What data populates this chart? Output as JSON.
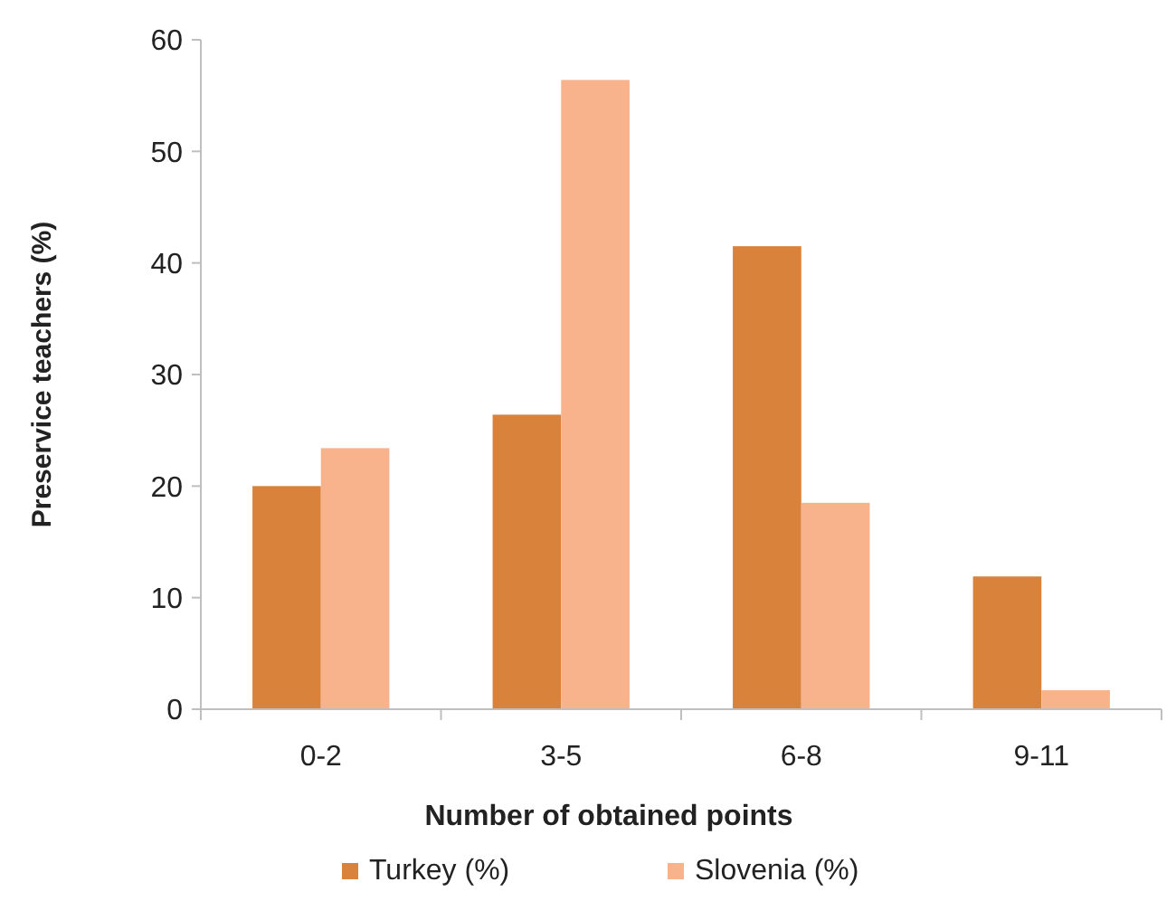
{
  "chart_data": {
    "type": "bar",
    "xlabel": "Number of obtained points",
    "ylabel": "Preservice teachers (%)",
    "categories": [
      "0-2",
      "3-5",
      "6-8",
      "9-11"
    ],
    "series": [
      {
        "name": "Turkey (%)",
        "color": "#d9823b",
        "values": [
          20.0,
          26.4,
          41.5,
          11.9
        ]
      },
      {
        "name": "Slovenia (%)",
        "color": "#f8b28c",
        "values": [
          23.4,
          56.4,
          18.5,
          1.7
        ]
      }
    ],
    "ylim": [
      0,
      60
    ],
    "yticks": [
      0,
      10,
      20,
      30,
      40,
      50,
      60
    ],
    "grid": false,
    "legend": "bottom"
  }
}
